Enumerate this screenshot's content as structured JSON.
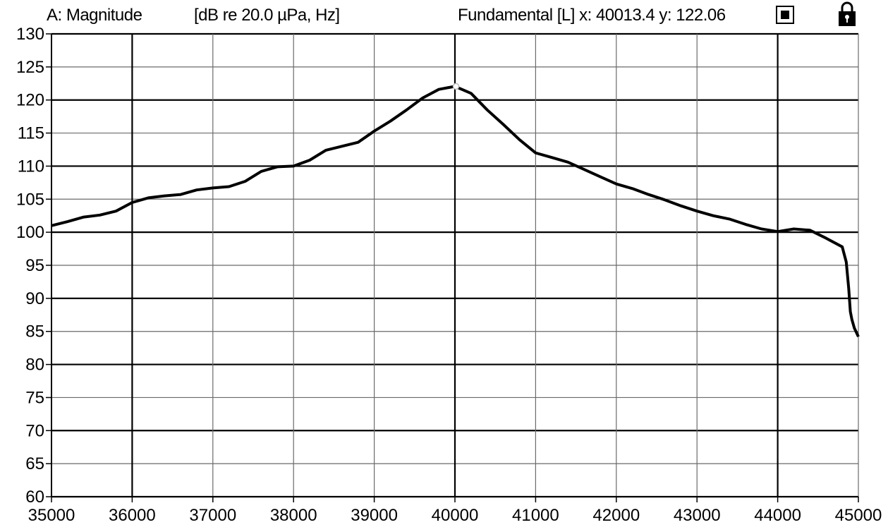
{
  "header": {
    "channel_label": "A: Magnitude",
    "units_label": "[dB re 20.0 µPa, Hz]",
    "cursor_readout": "Fundamental [L] x: 40013.4  y: 122.06"
  },
  "icons": {
    "stop": "stop-square-icon",
    "lock": "padlock-icon"
  },
  "chart_data": {
    "type": "line",
    "title": "",
    "xlabel": "",
    "ylabel": "",
    "xlim": [
      35000,
      45000
    ],
    "ylim": [
      60,
      130
    ],
    "xticks": [
      35000,
      36000,
      37000,
      38000,
      39000,
      40000,
      41000,
      42000,
      43000,
      44000,
      45000
    ],
    "yticks": [
      60,
      65,
      70,
      75,
      80,
      85,
      90,
      95,
      100,
      105,
      110,
      115,
      120,
      125,
      130
    ],
    "grid": true,
    "line_color": "#000000",
    "cursor": {
      "x": 40013.4,
      "y": 122.06
    },
    "series": [
      {
        "x": [
          35000,
          35200,
          35400,
          35600,
          35800,
          36000,
          36200,
          36400,
          36600,
          36800,
          37000,
          37200,
          37400,
          37600,
          37800,
          38000,
          38200,
          38400,
          38600,
          38800,
          39000,
          39200,
          39400,
          39600,
          39800,
          40000,
          40200,
          40400,
          40600,
          40800,
          41000,
          41200,
          41400,
          41600,
          41800,
          42000,
          42200,
          42400,
          42600,
          42800,
          43000,
          43200,
          43400,
          43600,
          43800,
          44000,
          44200,
          44400,
          44600,
          44800,
          44850,
          44880,
          44900,
          44920,
          44950,
          45000
        ],
        "y": [
          101,
          101.6,
          102.3,
          102.6,
          103.2,
          104.5,
          105.2,
          105.5,
          105.7,
          106.4,
          106.7,
          106.9,
          107.7,
          109.2,
          109.9,
          110.0,
          110.9,
          112.4,
          113.0,
          113.6,
          115.3,
          116.8,
          118.5,
          120.3,
          121.6,
          122.06,
          121.0,
          118.5,
          116.3,
          114.0,
          112.0,
          111.3,
          110.6,
          109.5,
          108.4,
          107.3,
          106.6,
          105.7,
          104.9,
          104.0,
          103.2,
          102.5,
          102.0,
          101.2,
          100.5,
          100.1,
          100.5,
          100.3,
          99.1,
          97.8,
          95.5,
          91.5,
          88.0,
          86.8,
          85.5,
          84.2
        ]
      }
    ]
  }
}
